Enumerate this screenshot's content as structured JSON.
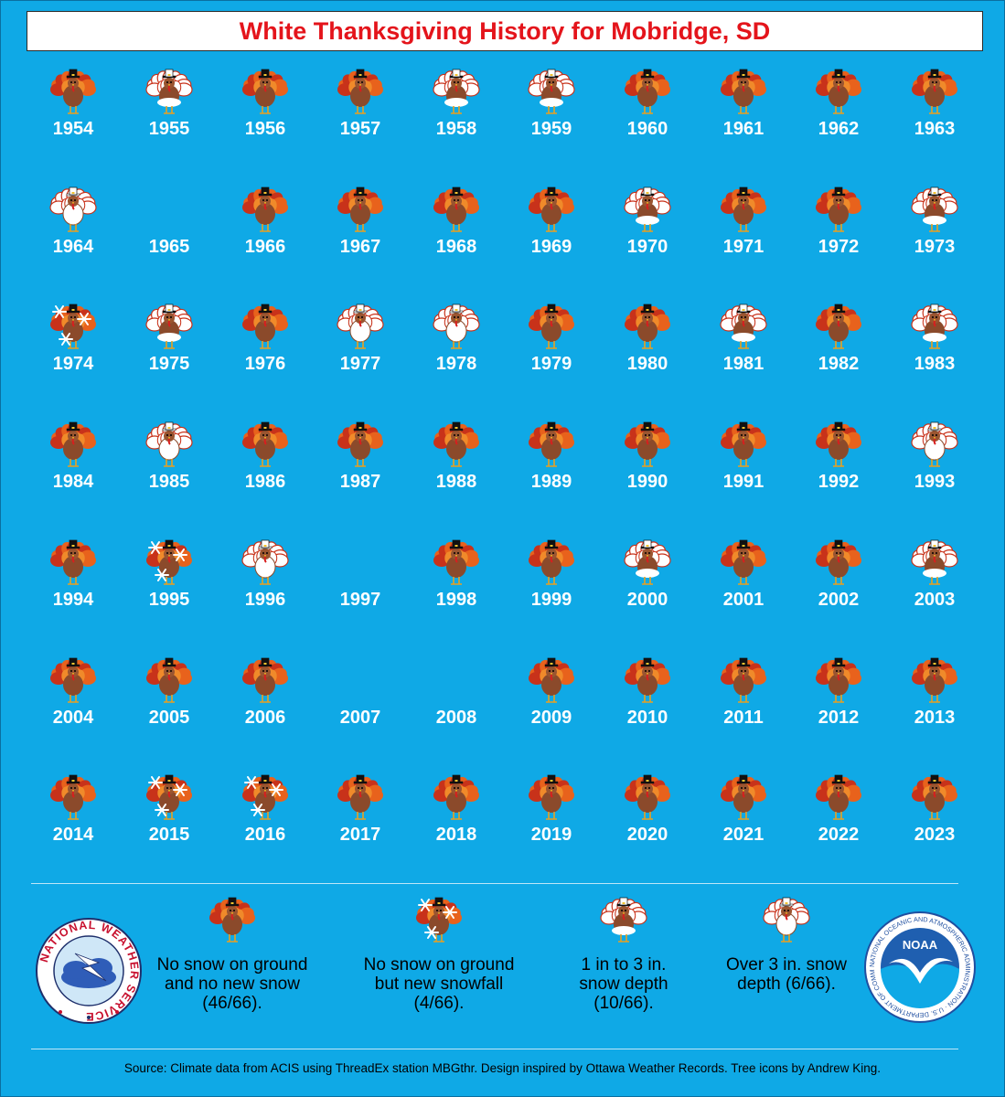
{
  "title": "White Thanksgiving History for Mobridge, SD",
  "colors": {
    "background": "#0fa9e6",
    "title": "#e4141b",
    "turkey_body": "#8b4a2b",
    "feather_orange": "#e8621c",
    "feather_red": "#c8321a",
    "snow": "#ffffff"
  },
  "years": [
    {
      "year": "1954",
      "cat": "none"
    },
    {
      "year": "1955",
      "cat": "depth1to3"
    },
    {
      "year": "1956",
      "cat": "none"
    },
    {
      "year": "1957",
      "cat": "none"
    },
    {
      "year": "1958",
      "cat": "depth1to3"
    },
    {
      "year": "1959",
      "cat": "depth1to3"
    },
    {
      "year": "1960",
      "cat": "none"
    },
    {
      "year": "1961",
      "cat": "none"
    },
    {
      "year": "1962",
      "cat": "none"
    },
    {
      "year": "1963",
      "cat": "none"
    },
    {
      "year": "1964",
      "cat": "depthover3"
    },
    {
      "year": "1965",
      "cat": "missing"
    },
    {
      "year": "1966",
      "cat": "none"
    },
    {
      "year": "1967",
      "cat": "none"
    },
    {
      "year": "1968",
      "cat": "none"
    },
    {
      "year": "1969",
      "cat": "none"
    },
    {
      "year": "1970",
      "cat": "depth1to3"
    },
    {
      "year": "1971",
      "cat": "none"
    },
    {
      "year": "1972",
      "cat": "none"
    },
    {
      "year": "1973",
      "cat": "depth1to3"
    },
    {
      "year": "1974",
      "cat": "newsnow"
    },
    {
      "year": "1975",
      "cat": "depth1to3"
    },
    {
      "year": "1976",
      "cat": "none"
    },
    {
      "year": "1977",
      "cat": "depthover3"
    },
    {
      "year": "1978",
      "cat": "depthover3"
    },
    {
      "year": "1979",
      "cat": "none"
    },
    {
      "year": "1980",
      "cat": "none"
    },
    {
      "year": "1981",
      "cat": "depth1to3"
    },
    {
      "year": "1982",
      "cat": "none"
    },
    {
      "year": "1983",
      "cat": "depth1to3"
    },
    {
      "year": "1984",
      "cat": "none"
    },
    {
      "year": "1985",
      "cat": "depthover3"
    },
    {
      "year": "1986",
      "cat": "none"
    },
    {
      "year": "1987",
      "cat": "none"
    },
    {
      "year": "1988",
      "cat": "none"
    },
    {
      "year": "1989",
      "cat": "none"
    },
    {
      "year": "1990",
      "cat": "none"
    },
    {
      "year": "1991",
      "cat": "none"
    },
    {
      "year": "1992",
      "cat": "none"
    },
    {
      "year": "1993",
      "cat": "depthover3"
    },
    {
      "year": "1994",
      "cat": "none"
    },
    {
      "year": "1995",
      "cat": "newsnow"
    },
    {
      "year": "1996",
      "cat": "depthover3"
    },
    {
      "year": "1997",
      "cat": "missing"
    },
    {
      "year": "1998",
      "cat": "none"
    },
    {
      "year": "1999",
      "cat": "none"
    },
    {
      "year": "2000",
      "cat": "depth1to3"
    },
    {
      "year": "2001",
      "cat": "none"
    },
    {
      "year": "2002",
      "cat": "none"
    },
    {
      "year": "2003",
      "cat": "depth1to3"
    },
    {
      "year": "2004",
      "cat": "none"
    },
    {
      "year": "2005",
      "cat": "none"
    },
    {
      "year": "2006",
      "cat": "none"
    },
    {
      "year": "2007",
      "cat": "missing"
    },
    {
      "year": "2008",
      "cat": "missing"
    },
    {
      "year": "2009",
      "cat": "none"
    },
    {
      "year": "2010",
      "cat": "none"
    },
    {
      "year": "2011",
      "cat": "none"
    },
    {
      "year": "2012",
      "cat": "none"
    },
    {
      "year": "2013",
      "cat": "none"
    },
    {
      "year": "2014",
      "cat": "none"
    },
    {
      "year": "2015",
      "cat": "newsnow"
    },
    {
      "year": "2016",
      "cat": "newsnow"
    },
    {
      "year": "2017",
      "cat": "none"
    },
    {
      "year": "2018",
      "cat": "none"
    },
    {
      "year": "2019",
      "cat": "none"
    },
    {
      "year": "2020",
      "cat": "none"
    },
    {
      "year": "2021",
      "cat": "none"
    },
    {
      "year": "2022",
      "cat": "none"
    },
    {
      "year": "2023",
      "cat": "none"
    }
  ],
  "legend": [
    {
      "cat": "none",
      "text": "No snow on ground and no new snow (46/66)."
    },
    {
      "cat": "newsnow",
      "text": "No snow on ground but new snowfall (4/66)."
    },
    {
      "cat": "depth1to3",
      "text": "1 in to 3 in. snow depth (10/66)."
    },
    {
      "cat": "depthover3",
      "text": "Over 3 in. snow depth (6/66)."
    }
  ],
  "logos": {
    "nws": {
      "text": "NATIONAL WEATHER SERVICE"
    },
    "noaa": {
      "center_text": "NOAA",
      "ring_text": "NATIONAL OCEANIC AND ATMOSPHERIC ADMINISTRATION · U.S. DEPARTMENT OF COMMERCE"
    }
  },
  "source": "Source: Climate data from ACIS using ThreadEx station MBGthr. Design inspired by Ottawa Weather Records. Tree icons by Andrew King."
}
